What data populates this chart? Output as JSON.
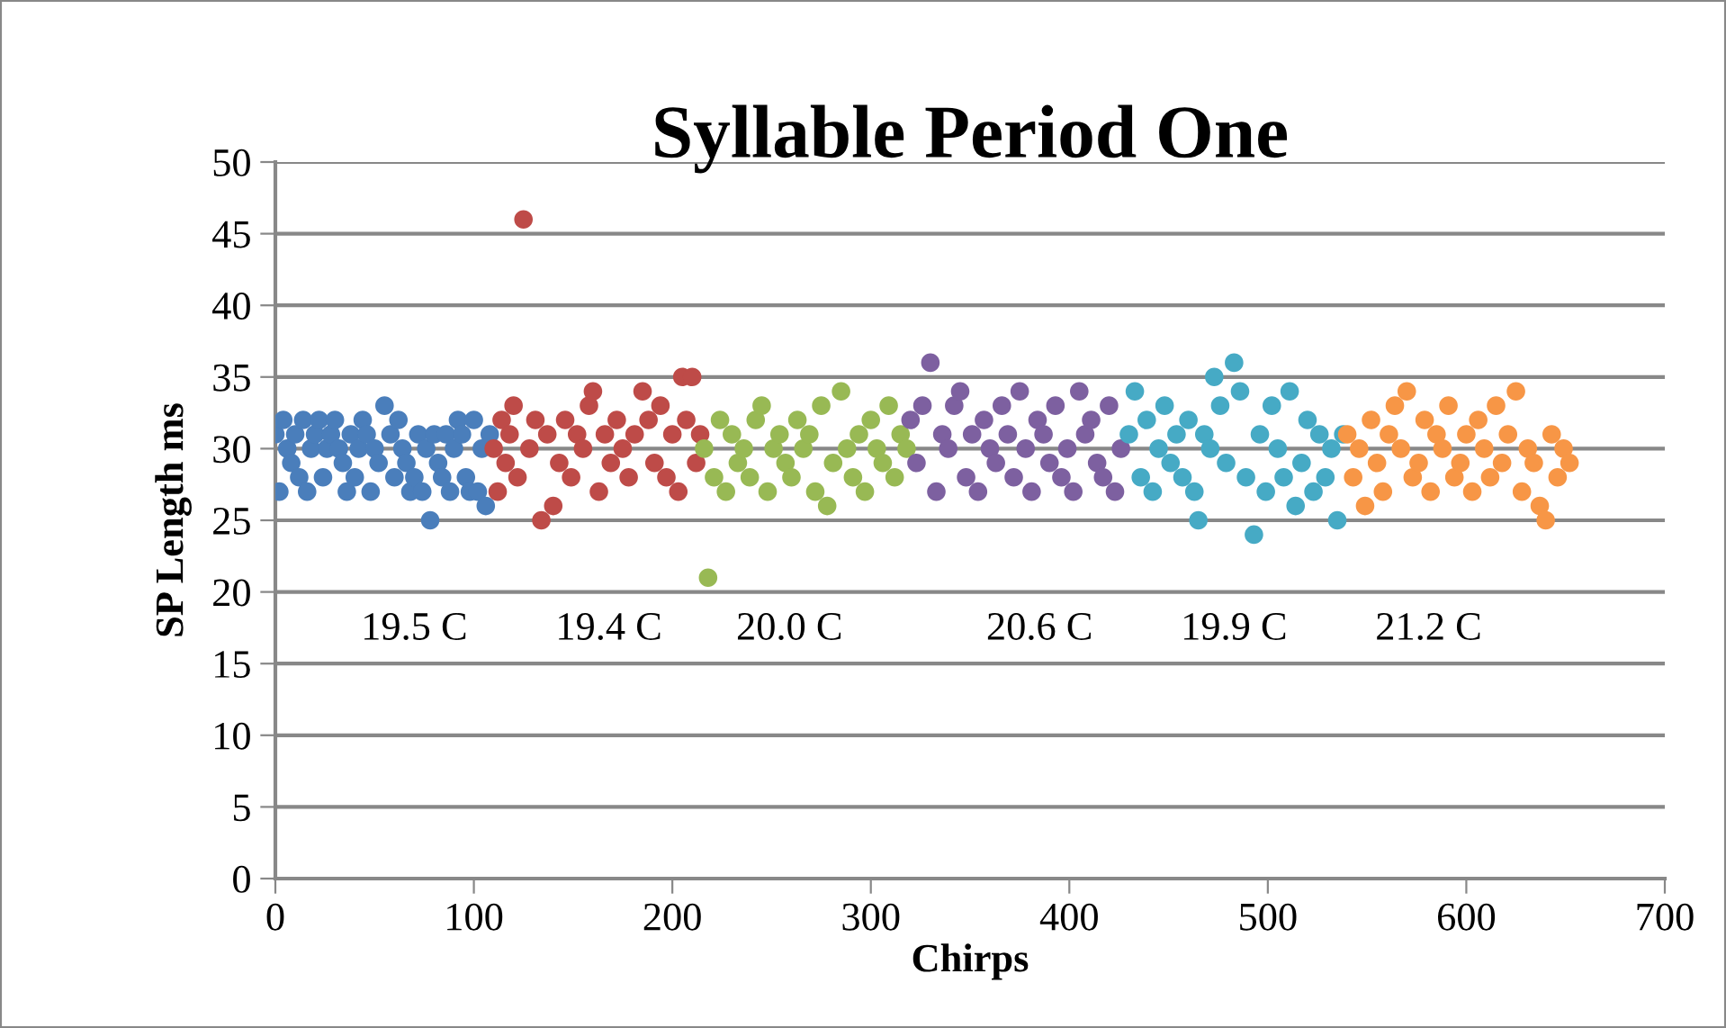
{
  "chart_data": {
    "type": "scatter",
    "title": "Syllable Period One",
    "xlabel": "Chirps",
    "ylabel": "SP Length ms",
    "xlim": [
      0,
      700
    ],
    "xticks": [
      0,
      100,
      200,
      300,
      400,
      500,
      600,
      700
    ],
    "ylim": [
      0,
      50
    ],
    "yticks": [
      0,
      5,
      10,
      15,
      20,
      25,
      30,
      35,
      40,
      45,
      50
    ],
    "grid": "y",
    "marker": "circle",
    "legend": false,
    "series": [
      {
        "color": "#4a7ebb",
        "x": [
          0,
          2,
          4,
          6,
          8,
          10,
          12,
          14,
          16,
          18,
          20,
          22,
          24,
          26,
          28,
          30,
          32,
          34,
          36,
          38,
          40,
          42,
          44,
          46,
          48,
          50,
          52,
          55,
          58,
          60,
          62,
          64,
          66,
          68,
          70,
          72,
          74,
          76,
          78,
          80,
          82,
          84,
          86,
          88,
          90,
          92,
          94,
          96,
          98,
          100,
          102,
          104,
          106,
          108
        ],
        "values": [
          31,
          27,
          32,
          30,
          29,
          31,
          28,
          32,
          27,
          30,
          31,
          32,
          28,
          30,
          31,
          32,
          30,
          29,
          27,
          31,
          28,
          30,
          32,
          31,
          27,
          30,
          29,
          33,
          31,
          28,
          32,
          30,
          29,
          27,
          28,
          31,
          27,
          30,
          25,
          31,
          29,
          28,
          31,
          27,
          30,
          32,
          31,
          28,
          27,
          32,
          27,
          30,
          26,
          31
        ]
      },
      {
        "color": "#be4b48",
        "x": [
          110,
          112,
          114,
          116,
          118,
          120,
          122,
          125,
          128,
          131,
          134,
          137,
          140,
          143,
          146,
          149,
          152,
          155,
          158,
          160,
          163,
          166,
          169,
          172,
          175,
          178,
          181,
          185,
          188,
          191,
          194,
          197,
          200,
          203,
          205,
          207,
          210,
          212,
          214
        ],
        "values": [
          30,
          27,
          32,
          29,
          31,
          33,
          28,
          46,
          30,
          32,
          25,
          31,
          26,
          29,
          32,
          28,
          31,
          30,
          33,
          34,
          27,
          31,
          29,
          32,
          30,
          28,
          31,
          34,
          32,
          29,
          33,
          28,
          31,
          27,
          35,
          32,
          35,
          29,
          31
        ]
      },
      {
        "color": "#98b954",
        "x": [
          216,
          218,
          221,
          224,
          227,
          230,
          233,
          236,
          239,
          242,
          245,
          248,
          251,
          254,
          257,
          260,
          263,
          266,
          269,
          272,
          275,
          278,
          281,
          285,
          288,
          291,
          294,
          297,
          300,
          303,
          306,
          309,
          312,
          315,
          318
        ],
        "values": [
          30,
          21,
          28,
          32,
          27,
          31,
          29,
          30,
          28,
          32,
          33,
          27,
          30,
          31,
          29,
          28,
          32,
          30,
          31,
          27,
          33,
          26,
          29,
          34,
          30,
          28,
          31,
          27,
          32,
          30,
          29,
          33,
          28,
          31,
          30
        ]
      },
      {
        "color": "#7d60a0",
        "x": [
          320,
          323,
          326,
          330,
          333,
          336,
          339,
          342,
          345,
          348,
          351,
          354,
          357,
          360,
          363,
          366,
          369,
          372,
          375,
          378,
          381,
          384,
          387,
          390,
          393,
          396,
          399,
          402,
          405,
          408,
          411,
          414,
          417,
          420,
          423,
          426
        ],
        "values": [
          32,
          29,
          33,
          36,
          27,
          31,
          30,
          33,
          34,
          28,
          31,
          27,
          32,
          30,
          29,
          33,
          31,
          28,
          34,
          30,
          27,
          32,
          31,
          29,
          33,
          28,
          30,
          27,
          34,
          31,
          32,
          29,
          28,
          33,
          27,
          30
        ]
      },
      {
        "color": "#46aac5",
        "x": [
          430,
          433,
          436,
          439,
          442,
          445,
          448,
          451,
          454,
          457,
          460,
          463,
          465,
          468,
          471,
          473,
          476,
          479,
          483,
          486,
          489,
          493,
          496,
          499,
          502,
          505,
          508,
          511,
          514,
          517,
          520,
          523,
          526,
          529,
          532,
          535,
          538
        ],
        "values": [
          31,
          34,
          28,
          32,
          27,
          30,
          33,
          29,
          31,
          28,
          32,
          27,
          25,
          31,
          30,
          35,
          33,
          29,
          36,
          34,
          28,
          24,
          31,
          27,
          33,
          30,
          28,
          34,
          26,
          29,
          32,
          27,
          31,
          28,
          30,
          25,
          31
        ]
      },
      {
        "color": "#f79646",
        "x": [
          540,
          543,
          546,
          549,
          552,
          555,
          558,
          561,
          564,
          567,
          570,
          573,
          576,
          579,
          582,
          585,
          588,
          591,
          594,
          597,
          600,
          603,
          606,
          609,
          612,
          615,
          618,
          621,
          625,
          628,
          631,
          634,
          637,
          640,
          643,
          646,
          649,
          652
        ],
        "values": [
          31,
          28,
          30,
          26,
          32,
          29,
          27,
          31,
          33,
          30,
          34,
          28,
          29,
          32,
          27,
          31,
          30,
          33,
          28,
          29,
          31,
          27,
          32,
          30,
          28,
          33,
          29,
          31,
          34,
          27,
          30,
          29,
          26,
          25,
          31,
          28,
          30,
          29
        ]
      }
    ],
    "annotations": [
      "19.5 C",
      "19.4 C",
      "20.0 C",
      "20.6 C",
      "19.9 C",
      "21.2 C"
    ]
  }
}
